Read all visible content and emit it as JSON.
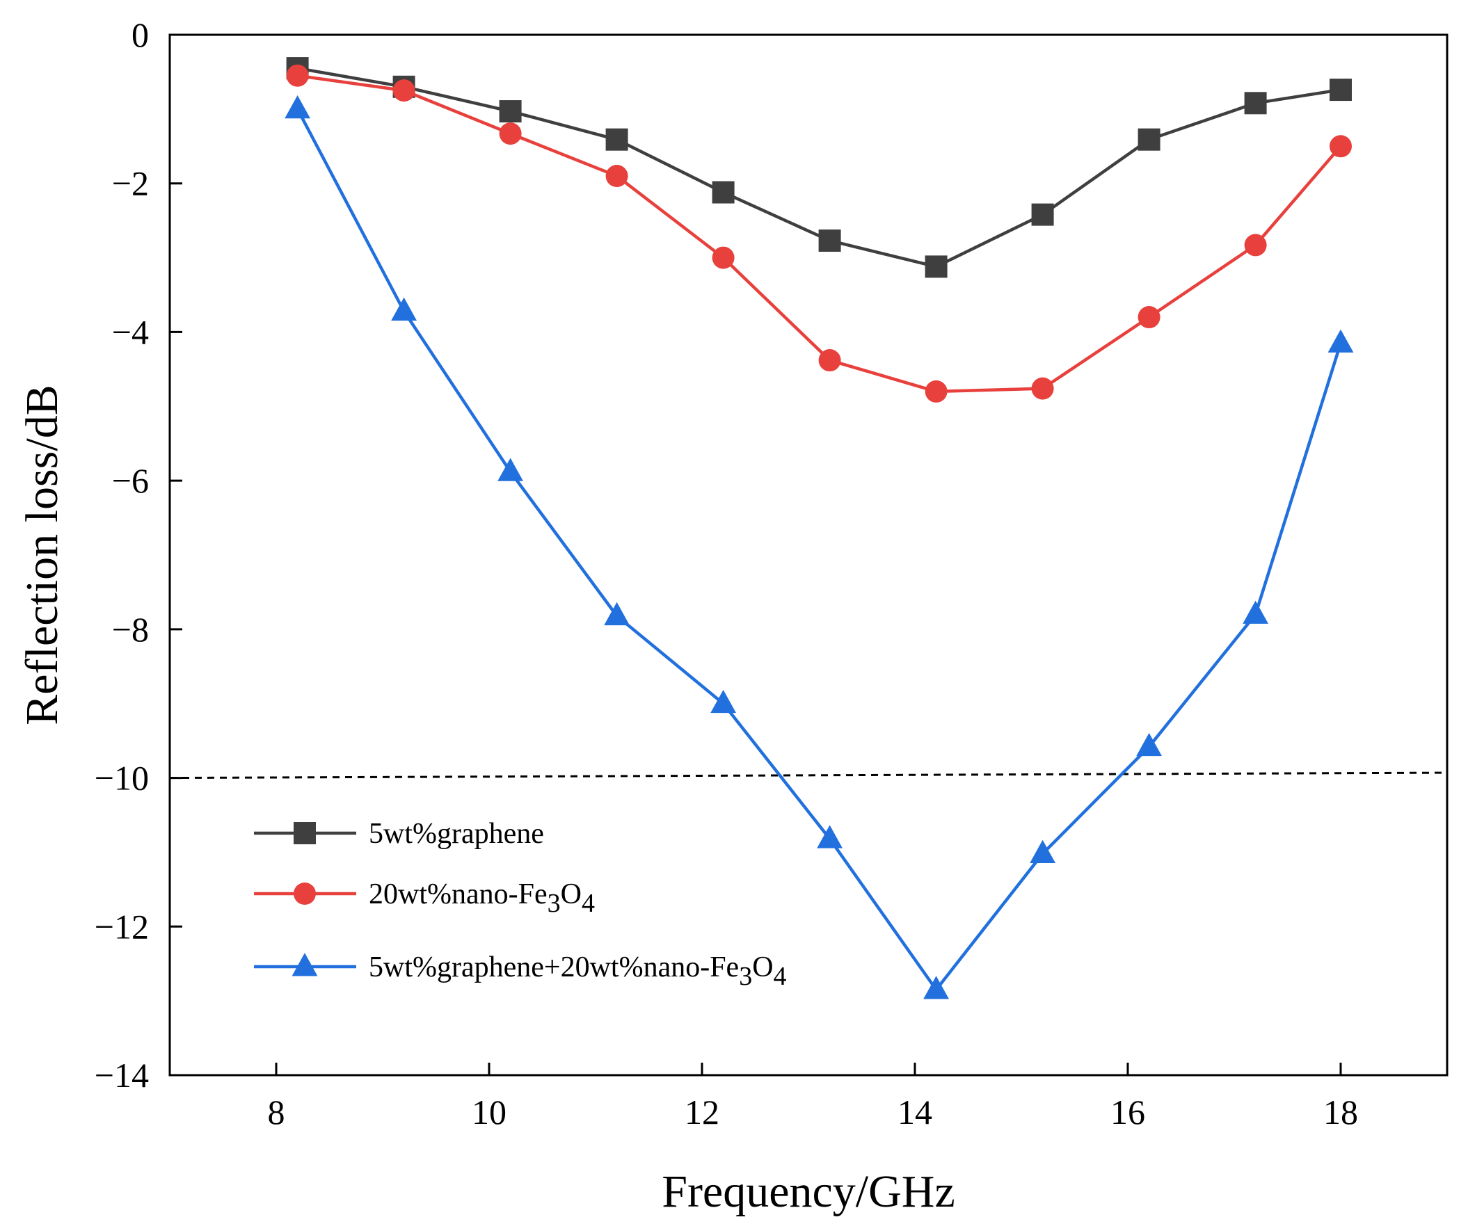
{
  "chart_data": {
    "type": "line",
    "title": "",
    "xlabel": "Frequency/GHz",
    "ylabel": "Reflection loss/dB",
    "xlim": [
      7,
      19
    ],
    "ylim": [
      -14,
      0
    ],
    "xticks": [
      8,
      10,
      12,
      14,
      16,
      18
    ],
    "yticks": [
      0,
      -2,
      -4,
      -6,
      -8,
      -10,
      -12,
      -14
    ],
    "xtick_labels": [
      "8",
      "10",
      "12",
      "14",
      "16",
      "18"
    ],
    "ytick_labels": [
      "0",
      "−2",
      "−4",
      "−6",
      "−8",
      "−10",
      "−12",
      "−14"
    ],
    "grid": false,
    "legend_position": "lower-left",
    "reference_line": {
      "style": "dashed",
      "color": "#000000",
      "x": [
        7,
        19
      ],
      "y": [
        -10.0,
        -9.93
      ]
    },
    "series": [
      {
        "name": "5wt%graphene",
        "legend": {
          "pre": "5wt%graphene",
          "sub1": "",
          "mid": "",
          "sub2": ""
        },
        "color": "#3f3f3f",
        "marker": "square",
        "x": [
          8.2,
          9.2,
          10.2,
          11.2,
          12.2,
          13.2,
          14.2,
          15.2,
          16.2,
          17.2,
          18.0
        ],
        "values": [
          -0.45,
          -0.7,
          -1.03,
          -1.41,
          -2.12,
          -2.77,
          -3.12,
          -2.42,
          -1.41,
          -0.92,
          -0.74
        ]
      },
      {
        "name": "20wt%nano-Fe3O4",
        "legend": {
          "pre": "20wt%nano-Fe",
          "sub1": "3",
          "mid": "O",
          "sub2": "4"
        },
        "color": "#e8403c",
        "marker": "circle",
        "x": [
          8.2,
          9.2,
          10.2,
          11.2,
          12.2,
          13.2,
          14.2,
          15.2,
          16.2,
          17.2,
          18.0
        ],
        "values": [
          -0.55,
          -0.75,
          -1.33,
          -1.9,
          -3.0,
          -4.38,
          -4.8,
          -4.76,
          -3.8,
          -2.83,
          -1.5
        ]
      },
      {
        "name": "5wt%graphene+20wt%nano-Fe3O4",
        "legend": {
          "pre": "5wt%graphene+20wt%nano-Fe",
          "sub1": "3",
          "mid": "O",
          "sub2": "4"
        },
        "color": "#2170de",
        "marker": "triangle",
        "x": [
          8.2,
          9.2,
          10.2,
          11.2,
          12.2,
          13.2,
          14.2,
          15.2,
          16.2,
          17.2,
          18.0
        ],
        "values": [
          -1.0,
          -3.72,
          -5.88,
          -7.82,
          -9.0,
          -10.82,
          -12.85,
          -11.02,
          -9.58,
          -7.8,
          -4.15
        ]
      }
    ]
  }
}
